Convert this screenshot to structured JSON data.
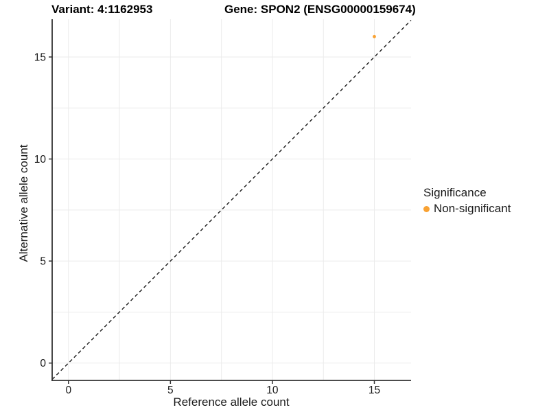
{
  "titles": {
    "variant": "Variant: 4:1162953",
    "gene": "Gene: SPON2 (ENSG00000159674)"
  },
  "axes": {
    "x_label": "Reference allele count",
    "y_label": "Alternative allele count"
  },
  "legend": {
    "title": "Significance",
    "items": [
      {
        "label": "Non-significant",
        "color": "#F9A233"
      }
    ]
  },
  "colors": {
    "background": "#ffffff",
    "grid": "#ebebeb",
    "axis_line": "#333333",
    "tick_mark": "#333333",
    "text": "#1a1a1a",
    "reference_line": "#1a1a1a",
    "point_orange": "#F9A233"
  },
  "chart_data": {
    "type": "scatter",
    "title": "Variant: 4:1162953    Gene: SPON2 (ENSG00000159674)",
    "xlabel": "Reference allele count",
    "ylabel": "Alternative allele count",
    "xlim": [
      -0.8,
      16.8
    ],
    "ylim": [
      -0.85,
      16.85
    ],
    "x_ticks": [
      0,
      5,
      10,
      15
    ],
    "y_ticks": [
      0,
      5,
      10,
      15
    ],
    "x_minor_ticks": [
      2.5,
      7.5,
      12.5
    ],
    "y_minor_ticks": [
      2.5,
      7.5,
      12.5
    ],
    "grid": true,
    "legend_position": "right",
    "legend_title": "Significance",
    "series": [
      {
        "name": "Non-significant",
        "color": "#F9A233",
        "points": [
          {
            "x": 15,
            "y": 16
          }
        ]
      }
    ],
    "reference_line": {
      "kind": "abline",
      "slope": 1,
      "intercept": 0,
      "style": "dashed",
      "color": "#1a1a1a"
    }
  }
}
